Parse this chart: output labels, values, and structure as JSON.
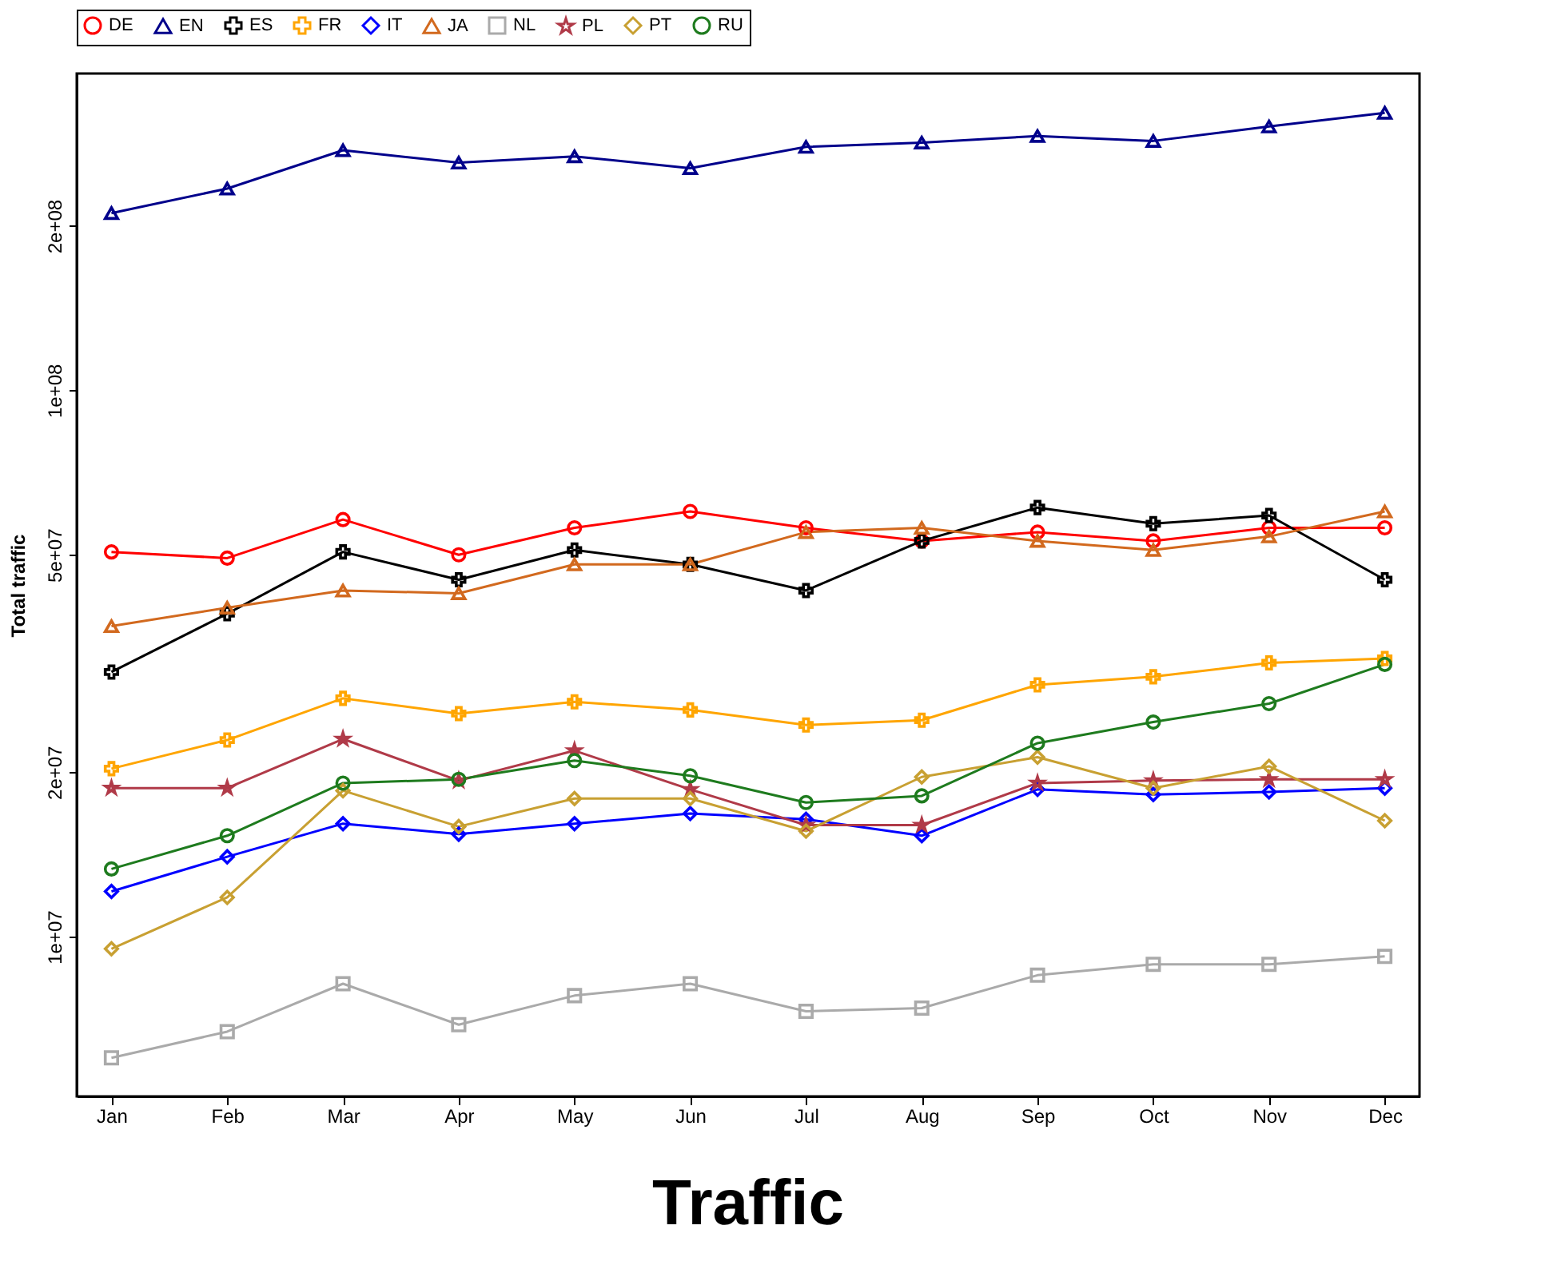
{
  "chart_data": {
    "type": "line",
    "title": "Traffic",
    "ylabel": "Total traffic",
    "categories": [
      "Jan",
      "Feb",
      "Mar",
      "Apr",
      "May",
      "Jun",
      "Jul",
      "Aug",
      "Sep",
      "Oct",
      "Nov",
      "Dec"
    ],
    "log": "y",
    "ylim": [
      5100000,
      380000000
    ],
    "yticks": [
      {
        "value": 10000000,
        "label": "1e+07"
      },
      {
        "value": 20000000,
        "label": "2e+07"
      },
      {
        "value": 50000000,
        "label": "5e+07"
      },
      {
        "value": 100000000,
        "label": "1e+08"
      },
      {
        "value": 200000000,
        "label": "2e+08"
      }
    ],
    "grid": false,
    "legend": "top",
    "line_style": "solid",
    "series": [
      {
        "name": "DE",
        "color": "#ff0000",
        "marker": "circle",
        "values": [
          50600000,
          49300000,
          58000000,
          50000000,
          56000000,
          60000000,
          56000000,
          53000000,
          55000000,
          53000000,
          56000000,
          56000000
        ]
      },
      {
        "name": "EN",
        "color": "#00008b",
        "marker": "triangle",
        "values": [
          211000000,
          234000000,
          275000000,
          261000000,
          268000000,
          255000000,
          279000000,
          284000000,
          292000000,
          286000000,
          304000000,
          322000000
        ]
      },
      {
        "name": "ES",
        "color": "#000000",
        "marker": "cross",
        "values": [
          30500000,
          39000000,
          50600000,
          45000000,
          51000000,
          48000000,
          43000000,
          53000000,
          61000000,
          57000000,
          59000000,
          45000000
        ]
      },
      {
        "name": "FR",
        "color": "#ffa500",
        "marker": "cross",
        "values": [
          20300000,
          22900000,
          27300000,
          25600000,
          26900000,
          26000000,
          24400000,
          24900000,
          28900000,
          29900000,
          31700000,
          32300000
        ]
      },
      {
        "name": "IT",
        "color": "#0000ff",
        "marker": "diamond",
        "values": [
          12100000,
          14000000,
          16100000,
          15400000,
          16100000,
          16800000,
          16400000,
          15300000,
          18600000,
          18200000,
          18400000,
          18700000
        ]
      },
      {
        "name": "JA",
        "color": "#d2691e",
        "marker": "triangle",
        "values": [
          37000000,
          40000000,
          43000000,
          42500000,
          48000000,
          48000000,
          55000000,
          56000000,
          53000000,
          51000000,
          54000000,
          60000000
        ]
      },
      {
        "name": "NL",
        "color": "#aaaaaa",
        "marker": "square",
        "values": [
          6000000,
          6700000,
          8200000,
          6900000,
          7800000,
          8200000,
          7300000,
          7400000,
          8500000,
          8900000,
          8900000,
          9200000
        ]
      },
      {
        "name": "PL",
        "color": "#b03a48",
        "marker": "star",
        "values": [
          18700000,
          18700000,
          23000000,
          19300000,
          21900000,
          18600000,
          16000000,
          16000000,
          19100000,
          19300000,
          19400000,
          19400000
        ]
      },
      {
        "name": "PT",
        "color": "#c8a032",
        "marker": "diamond",
        "values": [
          9500000,
          11800000,
          18500000,
          15900000,
          17900000,
          17900000,
          15600000,
          19600000,
          21300000,
          18700000,
          20500000,
          16300000
        ]
      },
      {
        "name": "RU",
        "color": "#1e7b1e",
        "marker": "circle",
        "values": [
          13300000,
          15300000,
          19100000,
          19400000,
          21000000,
          19700000,
          17600000,
          18100000,
          22600000,
          24700000,
          26700000,
          31500000
        ]
      }
    ]
  }
}
